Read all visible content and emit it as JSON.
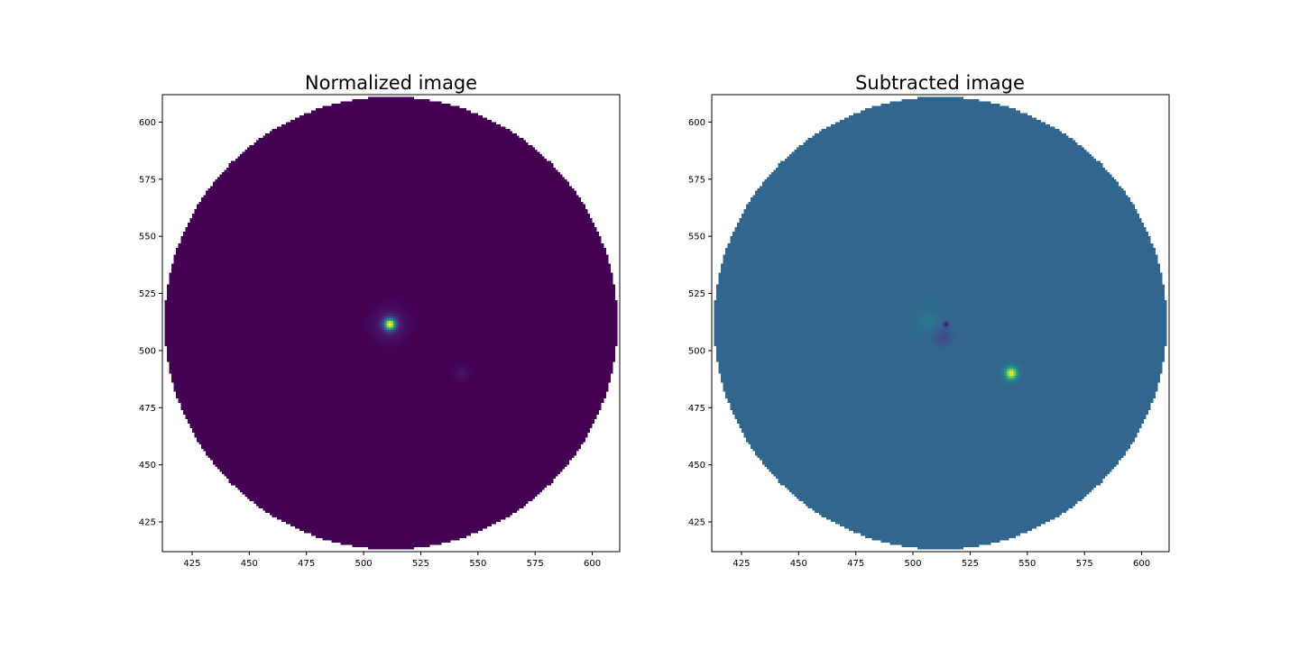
{
  "chart_data": [
    {
      "type": "heatmap",
      "title": "Normalized image",
      "xlim": [
        412,
        612
      ],
      "ylim": [
        412,
        612
      ],
      "xticks": [
        425,
        450,
        475,
        500,
        525,
        550,
        575,
        600
      ],
      "yticks": [
        425,
        450,
        475,
        500,
        525,
        550,
        575,
        600
      ],
      "colormap": "viridis",
      "mask": {
        "shape": "circle",
        "center": [
          512,
          512
        ],
        "radius": 99
      },
      "background_value": 0.0,
      "sources": [
        {
          "x": 511.5,
          "y": 511.5,
          "amplitude": 1.0,
          "sigma": 1.6
        },
        {
          "x": 511.5,
          "y": 511.5,
          "amplitude": 0.12,
          "sigma": 4.5
        },
        {
          "x": 543,
          "y": 490,
          "amplitude": 0.05,
          "sigma": 2.2
        }
      ]
    },
    {
      "type": "heatmap",
      "title": "Subtracted image",
      "xlim": [
        412,
        612
      ],
      "ylim": [
        412,
        612
      ],
      "xticks": [
        425,
        450,
        475,
        500,
        525,
        550,
        575,
        600
      ],
      "yticks": [
        425,
        450,
        475,
        500,
        525,
        550,
        575,
        600
      ],
      "colormap": "viridis",
      "mask": {
        "shape": "circle",
        "center": [
          512,
          512
        ],
        "radius": 99
      },
      "background_value": 0.33,
      "sources": [
        {
          "x": 543,
          "y": 490,
          "amplitude": 0.67,
          "sigma": 1.8
        },
        {
          "x": 514.5,
          "y": 511.5,
          "amplitude": -0.3,
          "sigma": 0.8
        },
        {
          "x": 513,
          "y": 506,
          "amplitude": -0.1,
          "sigma": 2.8
        },
        {
          "x": 507,
          "y": 513,
          "amplitude": 0.06,
          "sigma": 3.5
        }
      ]
    }
  ],
  "viridis": [
    "#440154",
    "#482878",
    "#3e4a89",
    "#31688e",
    "#26828e",
    "#1f9e89",
    "#35b779",
    "#6dcd59",
    "#b4de2c",
    "#fde725"
  ]
}
